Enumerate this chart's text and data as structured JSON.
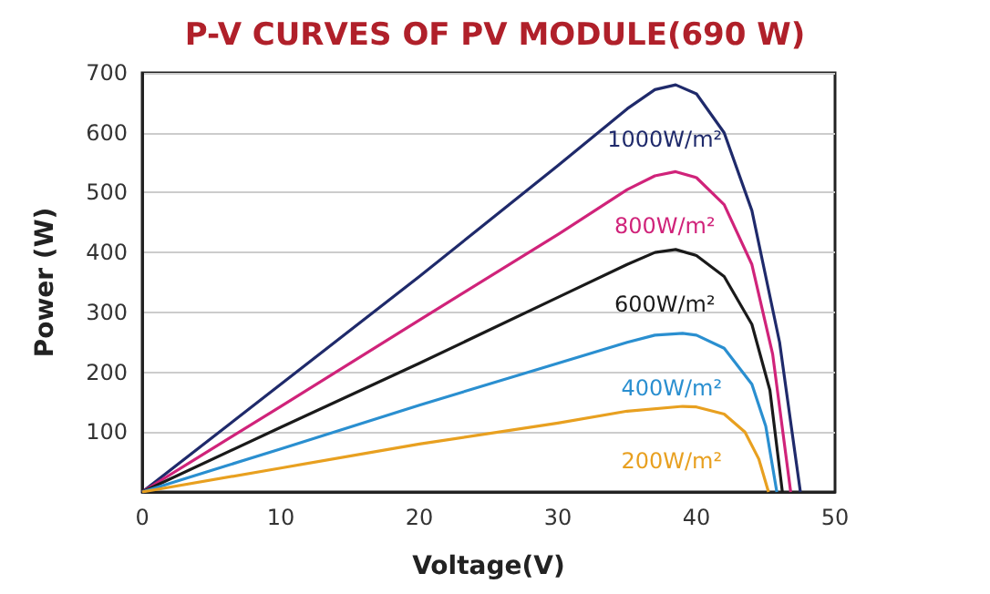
{
  "chart_data": {
    "type": "line",
    "title": "P-V CURVES OF PV MODULE(690 W)",
    "xlabel": "Voltage(V)",
    "ylabel": "Power (W)",
    "xlim": [
      0,
      50
    ],
    "xticks": [
      0,
      10,
      20,
      30,
      40,
      50
    ],
    "ylim": [
      0,
      700
    ],
    "yticks": [
      {
        "value": 0,
        "label": null
      },
      100,
      200,
      300,
      400,
      500,
      600,
      700
    ],
    "grid": "y",
    "legend": false,
    "marker": "none",
    "line_style": "solid",
    "series": [
      {
        "name": "1000W/m²",
        "color": "#1f2a6b",
        "x": [
          0,
          10,
          20,
          30,
          35,
          37,
          38.5,
          40,
          42,
          44,
          46,
          47.5
        ],
        "values": [
          0,
          180,
          360,
          545,
          640,
          672,
          680,
          665,
          600,
          470,
          250,
          0
        ]
      },
      {
        "name": "800W/m²",
        "color": "#d0237a",
        "x": [
          0,
          10,
          20,
          30,
          35,
          37,
          38.5,
          40,
          42,
          44,
          45.5,
          46.8
        ],
        "values": [
          0,
          143,
          287,
          430,
          505,
          528,
          535,
          525,
          480,
          380,
          230,
          0
        ]
      },
      {
        "name": "600W/m²",
        "color": "#1a1a1a",
        "x": [
          0,
          10,
          20,
          30,
          35,
          37,
          38.5,
          40,
          42,
          44,
          45.3,
          46.2
        ],
        "values": [
          0,
          108,
          215,
          325,
          380,
          400,
          405,
          395,
          360,
          280,
          170,
          0
        ]
      },
      {
        "name": "400W/m²",
        "color": "#2a8fd0",
        "x": [
          0,
          10,
          20,
          30,
          35,
          37,
          39,
          40,
          42,
          44,
          45,
          45.8
        ],
        "values": [
          0,
          72,
          145,
          215,
          250,
          262,
          265,
          262,
          240,
          180,
          110,
          0
        ]
      },
      {
        "name": "200W/m²",
        "color": "#e8a020",
        "x": [
          0,
          10,
          20,
          30,
          35,
          39,
          40,
          42,
          43.5,
          44.5,
          45.2
        ],
        "values": [
          0,
          40,
          80,
          115,
          135,
          143,
          142,
          130,
          100,
          55,
          0
        ]
      }
    ]
  }
}
